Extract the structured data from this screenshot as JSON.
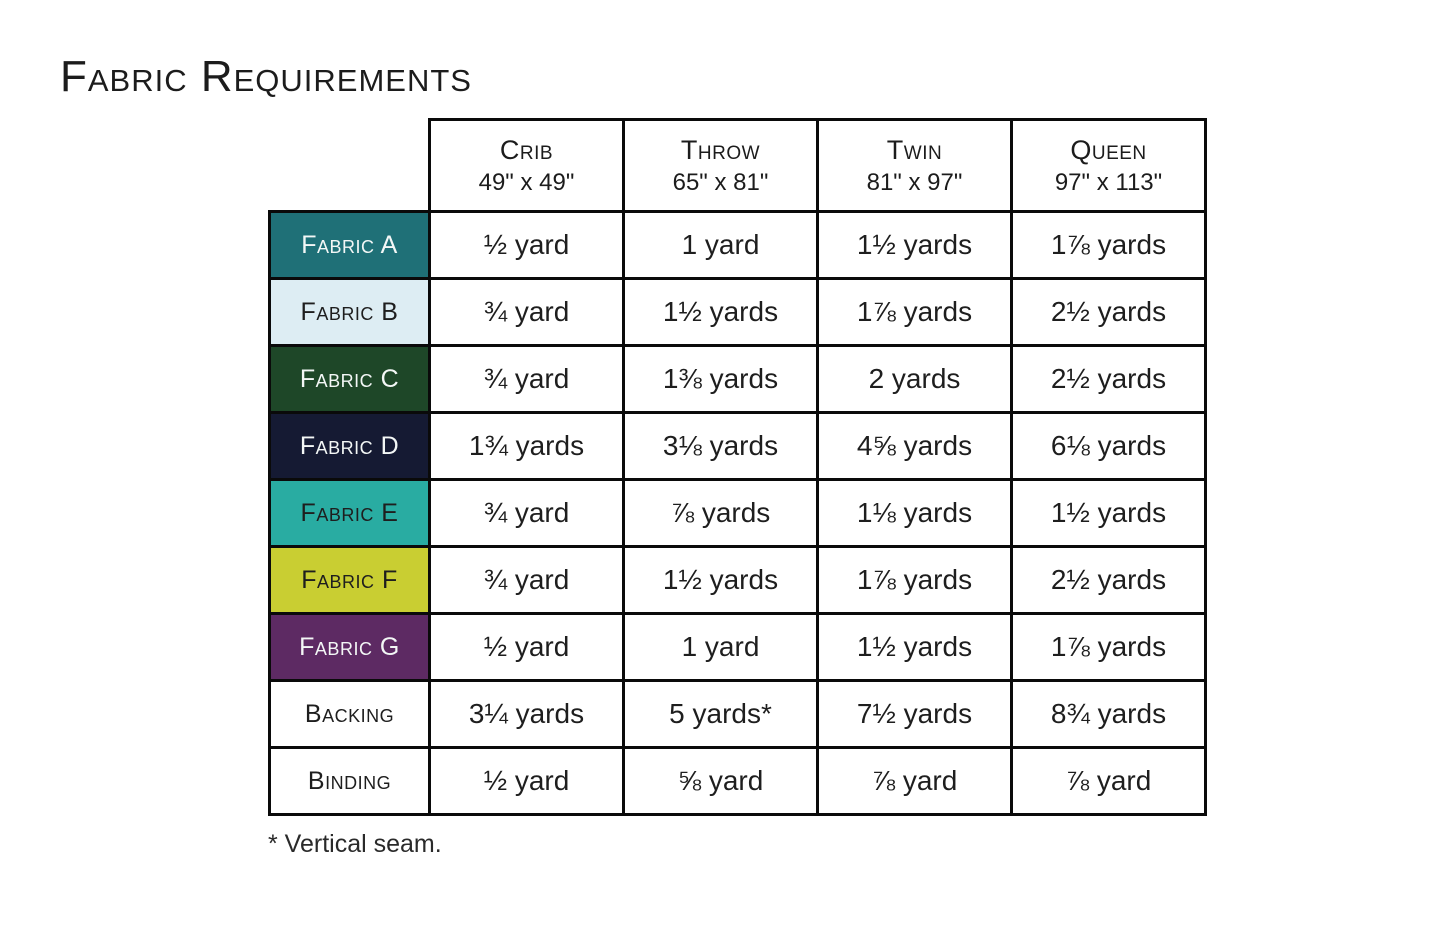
{
  "title": "Fabric Requirements",
  "footnote": "* Vertical seam.",
  "table": {
    "columns": [
      {
        "name": "Crib",
        "size": "49\" x 49\""
      },
      {
        "name": "Throw",
        "size": "65\" x 81\""
      },
      {
        "name": "Twin",
        "size": "81\" x 97\""
      },
      {
        "name": "Queen",
        "size": "97\" x 113\""
      }
    ],
    "rows": [
      {
        "label": "Fabric A",
        "swatch_color": "#1f7077",
        "text_color": "#f3f7f6",
        "values": [
          "½ yard",
          "1 yard",
          "1½ yards",
          "1⅞ yards"
        ]
      },
      {
        "label": "Fabric B",
        "swatch_color": "#ddedf3",
        "text_color": "#1e1e1e",
        "values": [
          "¾ yard",
          "1½ yards",
          "1⅞ yards",
          "2½ yards"
        ]
      },
      {
        "label": "Fabric C",
        "swatch_color": "#1e4728",
        "text_color": "#f3f7f6",
        "values": [
          "¾ yard",
          "1⅜ yards",
          "2 yards",
          "2½ yards"
        ]
      },
      {
        "label": "Fabric D",
        "swatch_color": "#151a33",
        "text_color": "#f3f7f6",
        "values": [
          "1¾ yards",
          "3⅛ yards",
          "4⅝ yards",
          "6⅛ yards"
        ]
      },
      {
        "label": "Fabric E",
        "swatch_color": "#29aca2",
        "text_color": "#1e1e1e",
        "values": [
          "¾ yard",
          "⅞ yards",
          "1⅛ yards",
          "1½ yards"
        ]
      },
      {
        "label": "Fabric F",
        "swatch_color": "#c9ce32",
        "text_color": "#1e1e1e",
        "values": [
          "¾ yard",
          "1½ yards",
          "1⅞ yards",
          "2½ yards"
        ]
      },
      {
        "label": "Fabric G",
        "swatch_color": "#5d2a63",
        "text_color": "#f3f7f6",
        "values": [
          "½ yard",
          "1 yard",
          "1½ yards",
          "1⅞ yards"
        ]
      },
      {
        "label": "Backing",
        "swatch_color": "#ffffff",
        "text_color": "#1e1e1e",
        "values": [
          "3¼ yards",
          "5 yards*",
          "7½ yards",
          "8¾ yards"
        ]
      },
      {
        "label": "Binding",
        "swatch_color": "#ffffff",
        "text_color": "#1e1e1e",
        "values": [
          "½ yard",
          "⅝ yard",
          "⅞ yard",
          "⅞ yard"
        ]
      }
    ]
  }
}
